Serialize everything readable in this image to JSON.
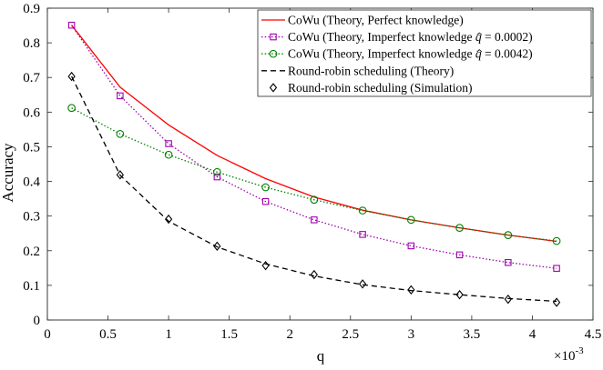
{
  "chart_data": {
    "type": "line",
    "xlabel": "q",
    "ylabel": "Accuracy",
    "x_multiplier_label": "×10",
    "x_multiplier_exponent": "-3",
    "xlim": [
      0,
      4.5
    ],
    "ylim": [
      0,
      0.9
    ],
    "x_ticks": [
      0,
      0.5,
      1,
      1.5,
      2,
      2.5,
      3,
      3.5,
      4,
      4.5
    ],
    "x_tick_labels": [
      "0",
      "0.5",
      "1",
      "1.5",
      "2",
      "2.5",
      "3",
      "3.5",
      "4",
      "4.5"
    ],
    "y_ticks": [
      0,
      0.1,
      0.2,
      0.3,
      0.4,
      0.5,
      0.6,
      0.7,
      0.8,
      0.9
    ],
    "y_tick_labels": [
      "0",
      "0.1",
      "0.2",
      "0.3",
      "0.4",
      "0.5",
      "0.6",
      "0.7",
      "0.8",
      "0.9"
    ],
    "grid": false,
    "legend_position": "top-right",
    "series": [
      {
        "name": "CoWu (Theory, Perfect knowledge)",
        "color": "#ff0000",
        "line_style": "solid",
        "marker": "none",
        "x": [
          0.2,
          0.6,
          1.0,
          1.4,
          1.8,
          2.2,
          2.6,
          3.0,
          3.4,
          3.8,
          4.2
        ],
        "values": [
          0.851,
          0.672,
          0.563,
          0.475,
          0.408,
          0.355,
          0.317,
          0.289,
          0.266,
          0.245,
          0.227
        ]
      },
      {
        "name": "CoWu (Theory, Imperfect knowledge q̂ = 0.0002)",
        "legend_prefix": "CoWu (Theory, Imperfect knowledge ",
        "legend_symbol": "q",
        "legend_suffix": " = 0.0002)",
        "color": "#a000b0",
        "line_style": "dotted",
        "marker": "square",
        "x": [
          0.2,
          0.6,
          1.0,
          1.4,
          1.8,
          2.2,
          2.6,
          3.0,
          3.4,
          3.8,
          4.2
        ],
        "values": [
          0.851,
          0.647,
          0.509,
          0.413,
          0.342,
          0.289,
          0.247,
          0.214,
          0.188,
          0.166,
          0.149
        ]
      },
      {
        "name": "CoWu (Theory, Imperfect knowledge q̂ = 0.0042)",
        "legend_prefix": "CoWu (Theory, Imperfect knowledge ",
        "legend_symbol": "q",
        "legend_suffix": " = 0.0042)",
        "color": "#008000",
        "line_style": "dotted",
        "marker": "circle",
        "x": [
          0.2,
          0.6,
          1.0,
          1.4,
          1.8,
          2.2,
          2.6,
          3.0,
          3.4,
          3.8,
          4.2
        ],
        "values": [
          0.612,
          0.537,
          0.477,
          0.427,
          0.383,
          0.347,
          0.316,
          0.289,
          0.266,
          0.245,
          0.228
        ]
      },
      {
        "name": "Round-robin scheduling (Theory)",
        "color": "#000000",
        "line_style": "dashed",
        "marker": "none",
        "x": [
          0.2,
          0.6,
          1.0,
          1.4,
          1.8,
          2.2,
          2.6,
          3.0,
          3.4,
          3.8,
          4.2
        ],
        "values": [
          0.703,
          0.418,
          0.285,
          0.211,
          0.162,
          0.127,
          0.102,
          0.085,
          0.073,
          0.062,
          0.054
        ]
      },
      {
        "name": "Round-robin scheduling (Simulation)",
        "color": "#000000",
        "line_style": "none",
        "marker": "diamond",
        "x": [
          0.2,
          0.6,
          1.0,
          1.4,
          1.8,
          2.2,
          2.6,
          3.0,
          3.4,
          3.8,
          4.2
        ],
        "values": [
          0.703,
          0.419,
          0.291,
          0.213,
          0.157,
          0.131,
          0.104,
          0.087,
          0.073,
          0.06,
          0.051
        ]
      }
    ]
  }
}
